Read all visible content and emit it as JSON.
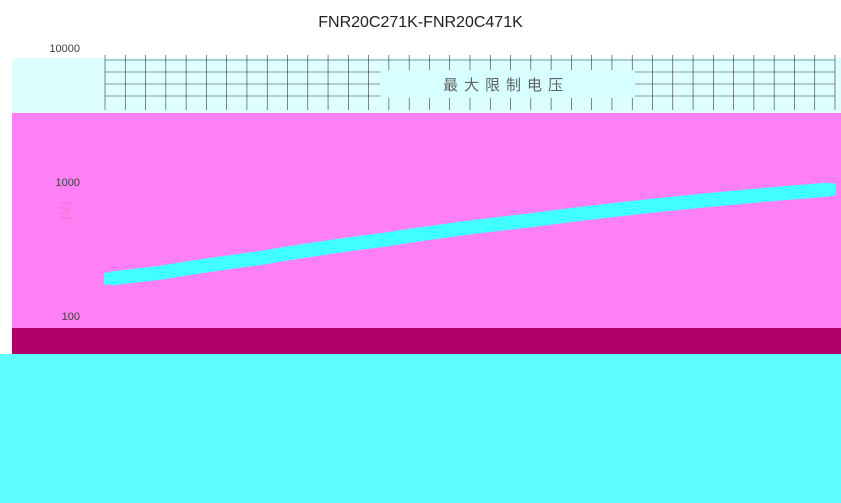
{
  "chart_data": {
    "type": "line",
    "title": "FNR20C271K-FNR20C471K",
    "ylabel": "(V)",
    "xlabel": "",
    "yscale": "log",
    "ylim": [
      100,
      10000
    ],
    "y_ticks": [
      "10000",
      "1000",
      "100"
    ],
    "legend": {
      "label": "最大限制电压",
      "placement": "top-center"
    },
    "grid": true,
    "series": [
      {
        "name": "最大限制电压",
        "x": [
          0,
          1,
          2,
          3,
          4,
          5,
          6,
          7,
          8,
          9,
          10,
          11,
          12,
          13,
          14,
          15,
          16,
          17,
          18,
          19,
          20,
          21,
          22,
          23,
          24,
          25,
          26,
          27,
          28,
          29
        ],
        "values": [
          190,
          200,
          210,
          225,
          240,
          255,
          270,
          290,
          310,
          330,
          350,
          370,
          395,
          420,
          445,
          470,
          495,
          520,
          550,
          580,
          610,
          640,
          670,
          700,
          730,
          760,
          790,
          820,
          850,
          880
        ]
      }
    ],
    "colors": {
      "plot_bg": "#ff80f4",
      "band": "#60ffff",
      "lower_band": "#b0006a",
      "axis_text": "#404040"
    }
  }
}
